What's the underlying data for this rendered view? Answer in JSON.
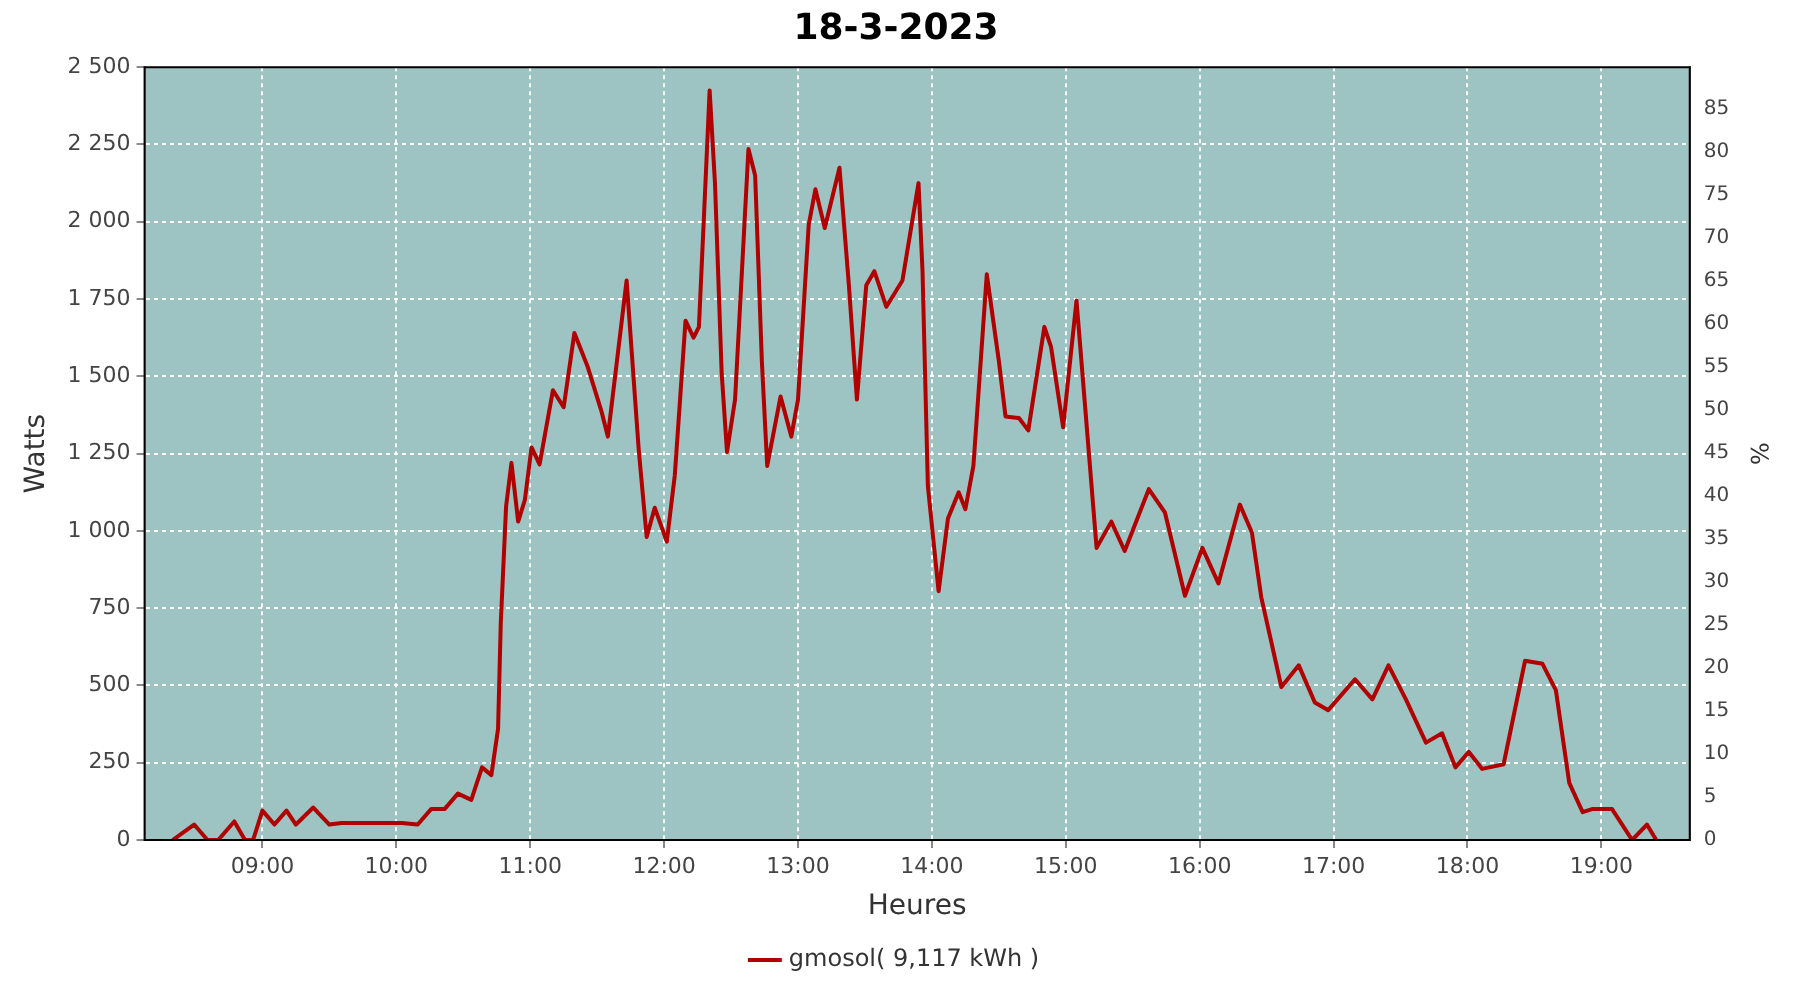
{
  "chart_data": {
    "type": "line",
    "title": "18-3-2023",
    "xlabel": "Heures",
    "ylabel": "Watts",
    "y2label": "%",
    "xlim": [
      8.12,
      19.66
    ],
    "xticks": [
      {
        "value": 9,
        "label": "09:00"
      },
      {
        "value": 10,
        "label": "10:00"
      },
      {
        "value": 11,
        "label": "11:00"
      },
      {
        "value": 12,
        "label": "12:00"
      },
      {
        "value": 13,
        "label": "13:00"
      },
      {
        "value": 14,
        "label": "14:00"
      },
      {
        "value": 15,
        "label": "15:00"
      },
      {
        "value": 16,
        "label": "16:00"
      },
      {
        "value": 17,
        "label": "17:00"
      },
      {
        "value": 18,
        "label": "18:00"
      },
      {
        "value": 19,
        "label": "19:00"
      }
    ],
    "ylim": [
      0,
      2500
    ],
    "yticks": [
      0,
      250,
      500,
      750,
      {
        "value": 1000,
        "label": "1 000"
      },
      {
        "value": 1250,
        "label": "1 250"
      },
      {
        "value": 1500,
        "label": "1 500"
      },
      {
        "value": 1750,
        "label": "1 750"
      },
      {
        "value": 2000,
        "label": "2 000"
      },
      {
        "value": 2250,
        "label": "2 250"
      },
      {
        "value": 2500,
        "label": "2 500"
      }
    ],
    "y2lim": [
      0,
      89.8
    ],
    "y2ticks": [
      0,
      5,
      10,
      15,
      20,
      25,
      30,
      35,
      40,
      45,
      50,
      55,
      60,
      65,
      70,
      75,
      80,
      85
    ],
    "grid": true,
    "legend": "bottom",
    "marker": "none",
    "line_style": "solid",
    "series": [
      {
        "name": "gmosol( 9,117 kWh )",
        "color": "#b00000",
        "x": [
          8.33,
          8.49,
          8.59,
          8.67,
          8.79,
          8.87,
          8.93,
          9.0,
          9.09,
          9.18,
          9.25,
          9.38,
          9.5,
          9.59,
          9.94,
          10.04,
          10.16,
          10.26,
          10.36,
          10.46,
          10.56,
          10.64,
          10.71,
          10.76,
          10.78,
          10.82,
          10.86,
          10.91,
          10.96,
          11.01,
          11.07,
          11.17,
          11.25,
          11.33,
          11.43,
          11.53,
          11.58,
          11.72,
          11.81,
          11.87,
          11.93,
          12.02,
          12.08,
          12.16,
          12.22,
          12.26,
          12.3,
          12.34,
          12.38,
          12.43,
          12.47,
          12.53,
          12.63,
          12.68,
          12.73,
          12.77,
          12.87,
          12.95,
          13.0,
          13.08,
          13.13,
          13.2,
          13.31,
          13.38,
          13.44,
          13.51,
          13.57,
          13.66,
          13.78,
          13.9,
          13.93,
          13.97,
          14.05,
          14.12,
          14.2,
          14.25,
          14.31,
          14.41,
          14.5,
          14.55,
          14.65,
          14.72,
          14.84,
          14.89,
          14.98,
          15.08,
          15.14,
          15.23,
          15.34,
          15.44,
          15.62,
          15.74,
          15.89,
          16.02,
          16.14,
          16.3,
          16.39,
          16.46,
          16.61,
          16.74,
          16.86,
          16.96,
          17.16,
          17.29,
          17.41,
          17.54,
          17.69,
          17.81,
          17.91,
          18.01,
          18.11,
          18.27,
          18.43,
          18.56,
          18.66,
          18.76,
          18.86,
          18.93,
          19.08,
          19.23,
          19.34,
          19.41
        ],
        "values": [
          0,
          50,
          0,
          0,
          60,
          0,
          0,
          95,
          50,
          95,
          50,
          105,
          50,
          55,
          55,
          55,
          50,
          100,
          100,
          150,
          130,
          235,
          210,
          360,
          700,
          1080,
          1220,
          1030,
          1100,
          1270,
          1215,
          1455,
          1400,
          1640,
          1530,
          1390,
          1305,
          1810,
          1265,
          980,
          1075,
          965,
          1180,
          1680,
          1625,
          1660,
          2040,
          2425,
          2125,
          1510,
          1255,
          1425,
          2235,
          2150,
          1550,
          1210,
          1435,
          1305,
          1425,
          1990,
          2105,
          1980,
          2175,
          1795,
          1425,
          1795,
          1840,
          1725,
          1810,
          2125,
          1840,
          1145,
          805,
          1040,
          1125,
          1070,
          1210,
          1830,
          1550,
          1370,
          1365,
          1325,
          1660,
          1595,
          1335,
          1745,
          1425,
          945,
          1030,
          935,
          1135,
          1060,
          790,
          945,
          830,
          1085,
          995,
          785,
          495,
          565,
          445,
          420,
          520,
          455,
          565,
          455,
          315,
          345,
          235,
          285,
          230,
          245,
          580,
          570,
          485,
          185,
          90,
          100,
          100,
          0,
          50,
          0
        ]
      }
    ]
  }
}
